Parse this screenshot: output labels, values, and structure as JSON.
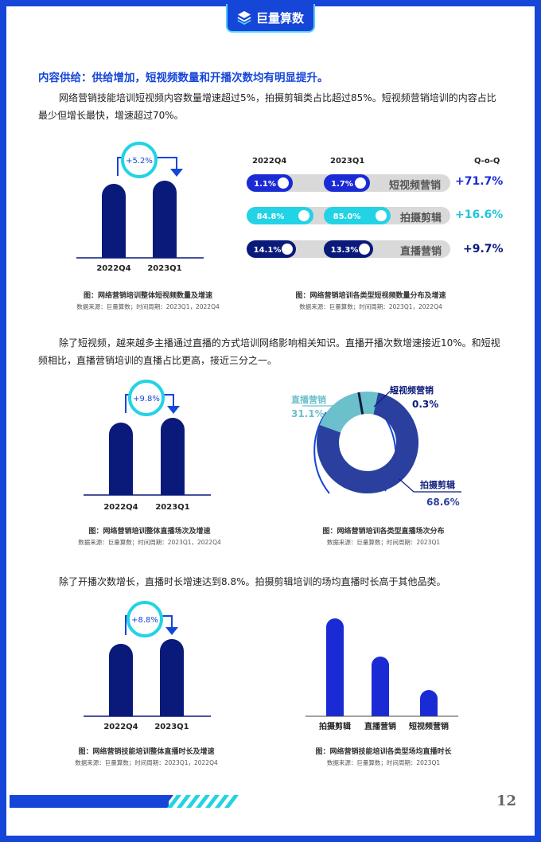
{
  "brand": {
    "name": "巨量算数"
  },
  "section_title": "内容供给：供给增加，短视频数量和开播次数均有明显提升。",
  "paragraph1": "网络营销技能培训短视频内容数量增速超过5%，拍摄剪辑类占比超过85%。短视频营销培训的内容占比最少但增长最快，增速超过70%。",
  "paragraph2": "除了短视频，越来越多主播通过直播的方式培训网络影响相关知识。直播开播次数增速接近10%。和短视频相比，直播营销培训的直播占比更高，接近三分之一。",
  "paragraph3": "除了开播次数增长，直播时长增速达到8.8%。拍摄剪辑培训的场均直播时长高于其他品类。",
  "page_number": "12",
  "colors": {
    "brand": "#1646d8",
    "navy": "#0a1a7a",
    "cyan": "#22d3e6"
  },
  "chart1": {
    "caption": "图：网络营销培训整体短视频数量及增速",
    "source": "数据来源：巨量算数；时间周期：2023Q1，2022Q4",
    "growth": "+5.2%",
    "categories": [
      "2022Q4",
      "2023Q1"
    ]
  },
  "chart2": {
    "caption": "图：网络营销培训各类型短视频数量分布及增速",
    "source": "数据来源：巨量算数；时间周期：2023Q1，2022Q4",
    "col_a": "2022Q4",
    "col_b": "2023Q1",
    "col_c": "Q-o-Q",
    "rows": [
      {
        "label": "短视频营销",
        "a": "1.1%",
        "b": "1.7%",
        "qoq": "+71.7%"
      },
      {
        "label": "拍摄剪辑",
        "a": "84.8%",
        "b": "85.0%",
        "qoq": "+16.6%"
      },
      {
        "label": "直播营销",
        "a": "14.1%",
        "b": "13.3%",
        "qoq": "+9.7%"
      }
    ]
  },
  "chart3": {
    "caption": "图：网络营销培训整体直播场次及增速",
    "source": "数据来源：巨量算数；时间周期：2023Q1，2022Q4",
    "growth": "+9.8%",
    "categories": [
      "2022Q4",
      "2023Q1"
    ]
  },
  "chart4": {
    "caption": "图：网络营销培训各类型直播场次分布",
    "source": "数据来源：巨量算数；时间周期：2023Q1",
    "slices": [
      {
        "label": "短视频营销",
        "value": "0.3%"
      },
      {
        "label": "直播营销",
        "value": "31.1%"
      },
      {
        "label": "拍摄剪辑",
        "value": "68.6%"
      }
    ]
  },
  "chart5": {
    "caption": "图：网络营销技能培训整体直播时长及增速",
    "source": "数据来源：巨量算数；时间周期：2023Q1，2022Q4",
    "growth": "+8.8%",
    "categories": [
      "2022Q4",
      "2023Q1"
    ]
  },
  "chart6": {
    "caption": "图：网络营销技能培训各类型场均直播时长",
    "source": "数据来源：巨量算数；时间周期：2023Q1",
    "categories": [
      "拍摄剪辑",
      "直播营销",
      "短视频营销"
    ]
  },
  "chart_data": [
    {
      "type": "bar",
      "title": "",
      "categories": [
        "2022Q4",
        "2023Q1"
      ],
      "values": [
        1.0,
        1.052
      ],
      "annotation": "+5.2%"
    },
    {
      "type": "table",
      "columns": [
        "2022Q4",
        "2023Q1",
        "Q-o-Q"
      ],
      "rows": [
        [
          "短视频营销",
          1.1,
          1.7,
          "+71.7%"
        ],
        [
          "拍摄剪辑",
          84.8,
          85.0,
          "+16.6%"
        ],
        [
          "直播营销",
          14.1,
          13.3,
          "+9.7%"
        ]
      ]
    },
    {
      "type": "bar",
      "title": "",
      "categories": [
        "2022Q4",
        "2023Q1"
      ],
      "values": [
        1.0,
        1.098
      ],
      "annotation": "+9.8%"
    },
    {
      "type": "pie",
      "categories": [
        "拍摄剪辑",
        "直播营销",
        "短视频营销"
      ],
      "values": [
        68.6,
        31.1,
        0.3
      ]
    },
    {
      "type": "bar",
      "title": "",
      "categories": [
        "2022Q4",
        "2023Q1"
      ],
      "values": [
        1.0,
        1.088
      ],
      "annotation": "+8.8%"
    },
    {
      "type": "bar",
      "title": "",
      "categories": [
        "拍摄剪辑",
        "直播营销",
        "短视频营销"
      ],
      "values": [
        1.0,
        0.58,
        0.25
      ]
    }
  ]
}
